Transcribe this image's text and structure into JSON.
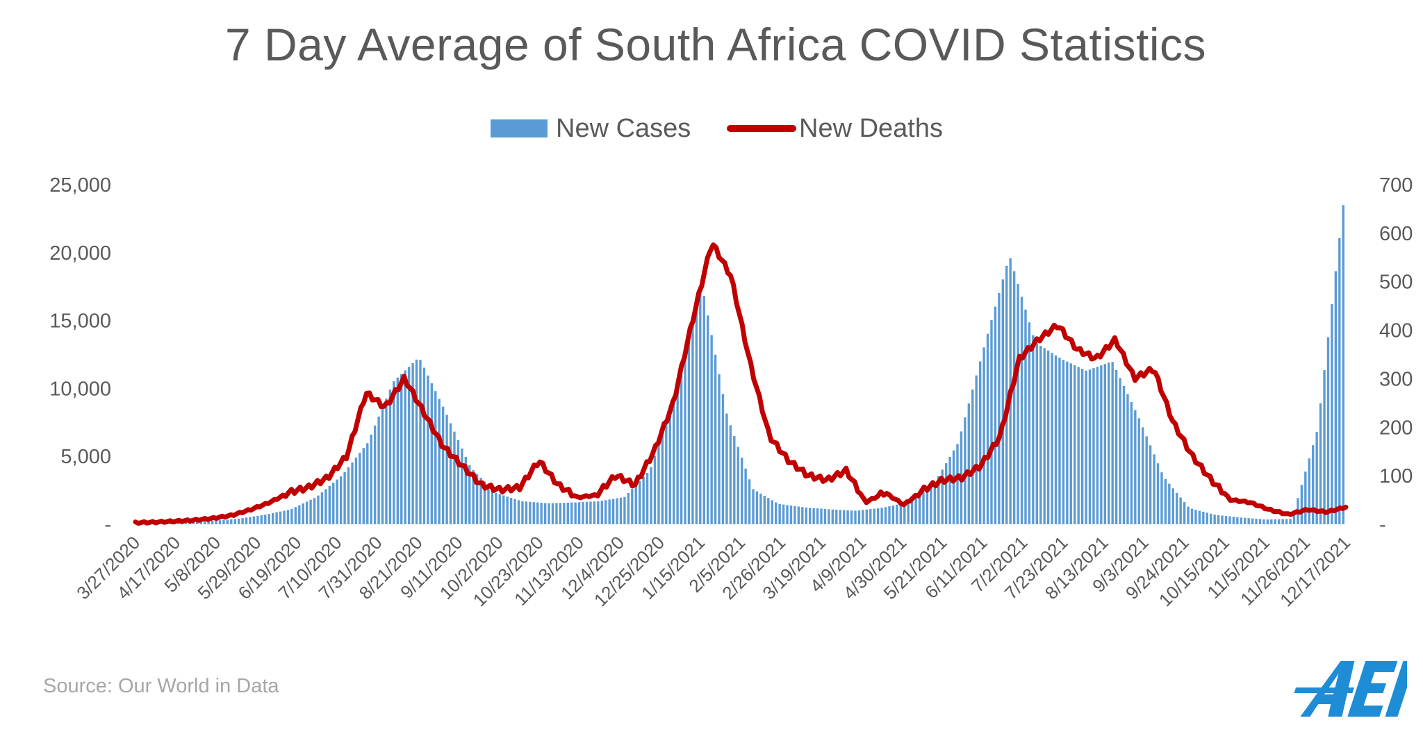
{
  "chart_data": {
    "type": "bar+line",
    "title": "7 Day Average of South Africa COVID Statistics",
    "legend": {
      "placement": "top-center",
      "cases_label": "New Cases",
      "deaths_label": "New Deaths"
    },
    "left_axis": {
      "ylim": [
        0,
        25000
      ],
      "ticks": [
        "-",
        "5,000",
        "10,000",
        "15,000",
        "20,000",
        "25,000"
      ]
    },
    "right_axis": {
      "ylim": [
        0,
        700
      ],
      "ticks": [
        "-",
        "100",
        "200",
        "300",
        "400",
        "500",
        "600",
        "700"
      ]
    },
    "x_tick_labels": [
      "3/27/2020",
      "4/17/2020",
      "5/8/2020",
      "5/29/2020",
      "6/19/2020",
      "7/10/2020",
      "7/31/2020",
      "8/21/2020",
      "9/11/2020",
      "10/2/2020",
      "10/23/2020",
      "11/13/2020",
      "12/4/2020",
      "12/25/2020",
      "1/15/2021",
      "2/5/2021",
      "2/26/2021",
      "3/19/2021",
      "4/9/2021",
      "4/30/2021",
      "5/21/2021",
      "6/11/2021",
      "7/2/2021",
      "7/23/2021",
      "8/13/2021",
      "9/3/2021",
      "9/24/2021",
      "10/15/2021",
      "11/5/2021",
      "11/26/2021",
      "12/17/2021"
    ],
    "series": [
      {
        "name": "New Cases",
        "kind": "bar",
        "axis": "left",
        "values": [
          60,
          100,
          170,
          260,
          420,
          700,
          1100,
          2000,
          3600,
          6000,
          10500,
          12300,
          8400,
          4200,
          2300,
          1700,
          1550,
          1600,
          1700,
          2000,
          4000,
          9500,
          17800,
          8000,
          2600,
          1500,
          1250,
          1100,
          1000,
          1200,
          1600,
          2800,
          6000,
          13000,
          19800,
          13400,
          12200,
          11300,
          12000,
          8000,
          3500,
          1200,
          700,
          500,
          350,
          400,
          7000,
          23500
        ]
      },
      {
        "name": "New Deaths",
        "kind": "line",
        "axis": "right",
        "values": [
          3,
          4,
          6,
          8,
          12,
          18,
          30,
          45,
          65,
          75,
          95,
          140,
          270,
          240,
          300,
          230,
          160,
          120,
          80,
          70,
          75,
          130,
          80,
          55,
          60,
          100,
          80,
          150,
          250,
          420,
          580,
          510,
          330,
          180,
          130,
          100,
          90,
          110,
          45,
          65,
          40,
          70,
          90,
          95,
          120,
          180,
          340,
          380,
          410,
          360,
          340,
          380,
          300,
          320,
          210,
          140,
          90,
          50,
          45,
          30,
          20,
          30,
          25,
          35
        ]
      }
    ]
  },
  "source_text": "Source: Our World in Data",
  "logo_text": "AEI",
  "colors": {
    "cases": "#5b9bd5",
    "deaths": "#c00000",
    "text": "#595959",
    "source": "#a6a6a6",
    "logo": "#1f8dd6"
  }
}
